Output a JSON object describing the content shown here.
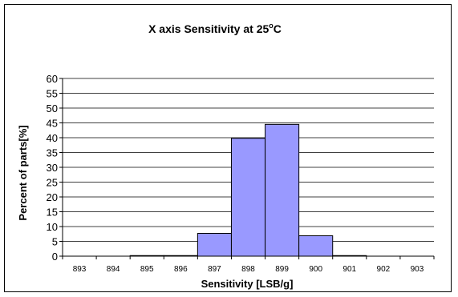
{
  "colors": {
    "bar_fill": "#9999ff",
    "bar_stroke": "#000000",
    "gridline": "#000000",
    "background": "#ffffff",
    "frame": "#000000"
  },
  "chart_data": {
    "type": "bar",
    "title": "X axis Sensitivity at 25",
    "title_degree": "o",
    "title_unit": "C",
    "xlabel": "Sensitivity  [LSB/g]",
    "ylabel": "Percent of parts[%]",
    "categories": [
      "893",
      "894",
      "895",
      "896",
      "897",
      "898",
      "899",
      "900",
      "901",
      "902",
      "903"
    ],
    "values": [
      0,
      0,
      0.2,
      0.2,
      7.7,
      39.8,
      44.5,
      6.9,
      0.2,
      0,
      0
    ],
    "ylim": [
      0,
      60
    ],
    "yticks": [
      0,
      5,
      10,
      15,
      20,
      25,
      30,
      35,
      40,
      45,
      50,
      55,
      60
    ],
    "grid": true,
    "legend": "none"
  }
}
